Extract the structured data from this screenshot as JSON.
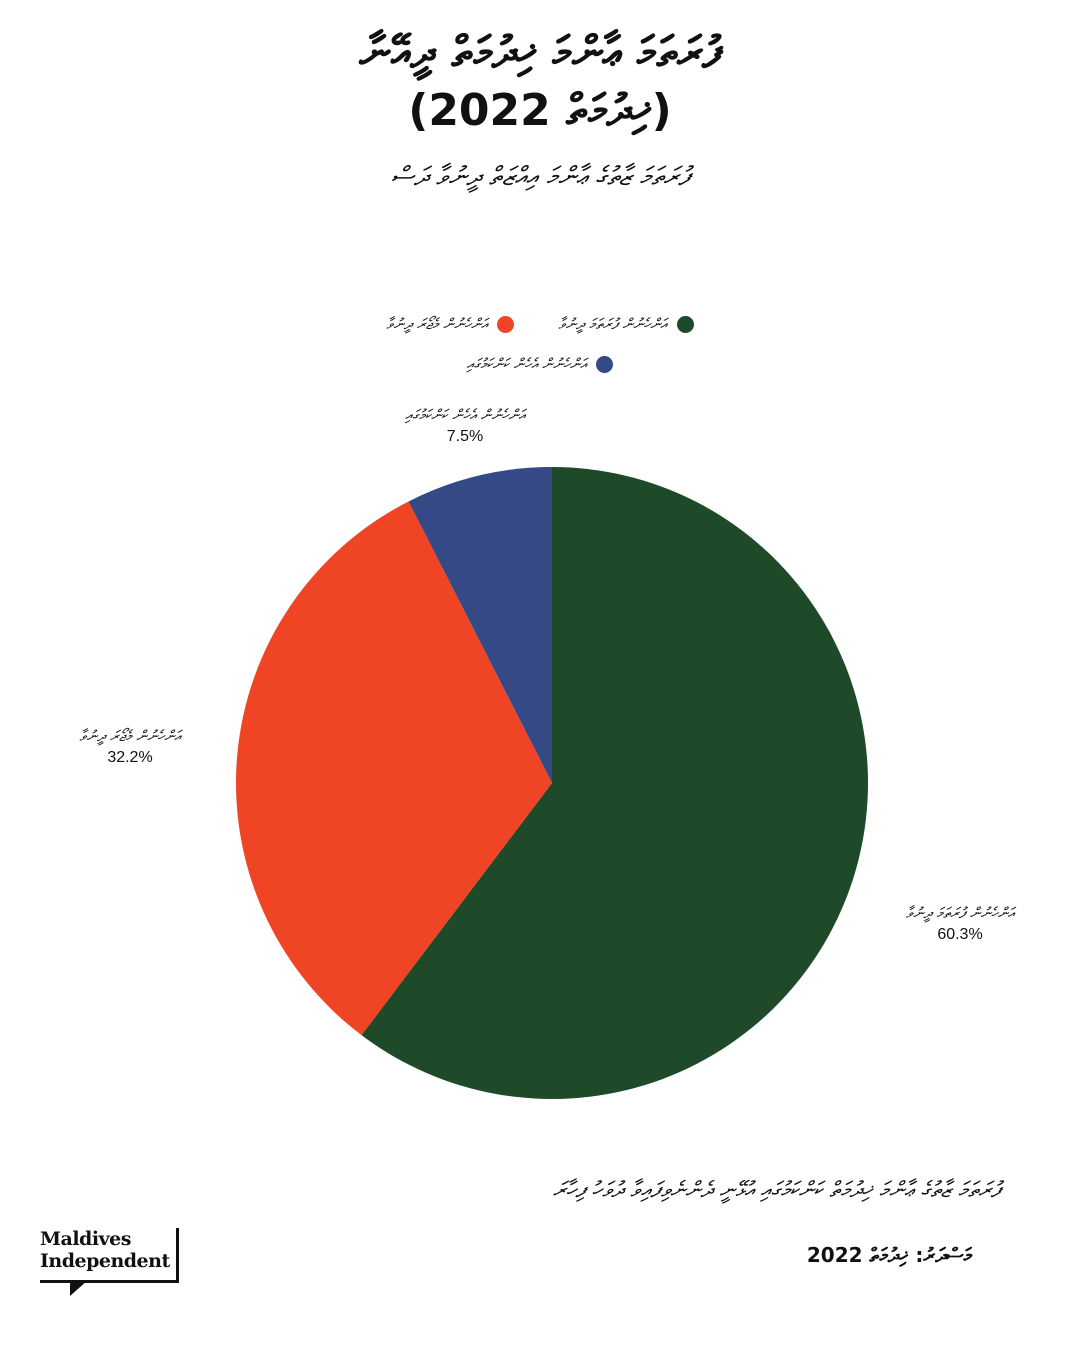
{
  "header": {
    "title_line1": "ފުރަތަމަ ޢާންމަ ޚިދުމަތް ދީއޭނާ",
    "title_line2": "(ޚިދުމަތް 2022)",
    "subtitle": "ފުރަތަމަ ޒާތުގެ ޢާންމަ އިއްޒަތް ދީނުވާ ދަސް"
  },
  "chart_data": {
    "type": "pie",
    "title": "",
    "start_angle_deg": 0,
    "direction": "clockwise",
    "legend": "top",
    "slices": [
      {
        "name": "އަންހެނުން ފުރަތަމަ ދީނުވާ",
        "label": "އަންހެނުން ފުރަތަމަ ދީނުވާ",
        "value": 60.3,
        "pct_text": "60.3%",
        "color": "#1f4a29"
      },
      {
        "name": "އަންހެނުން މެޖޯރަ ދީނުވާ",
        "label": "އަންހެނުން މެޖޯރަ ދީނުވާ",
        "value": 32.2,
        "pct_text": "32.2%",
        "color": "#ef4524"
      },
      {
        "name": "އަންހެނުން އެހެން ކަންކަމުގައި",
        "label": "އަންހެނުން އެހެން ކަންކަމުގައި",
        "value": 7.5,
        "pct_text": "7.5%",
        "color": "#364987"
      }
    ]
  },
  "footer": {
    "note": "ފުރަތަމަ ޒާތުގެ ޢާންމަ ޚިދުމަތް ކަންކަމުގައި އުޅޭނީ ދެންނެވިފައިވާ ދުވަހު ފިހާރަ",
    "source": "މަސްދަރު: ޚިދުމަތް 2022"
  },
  "logo": {
    "line1": "Maldives",
    "line2": "Independent"
  }
}
